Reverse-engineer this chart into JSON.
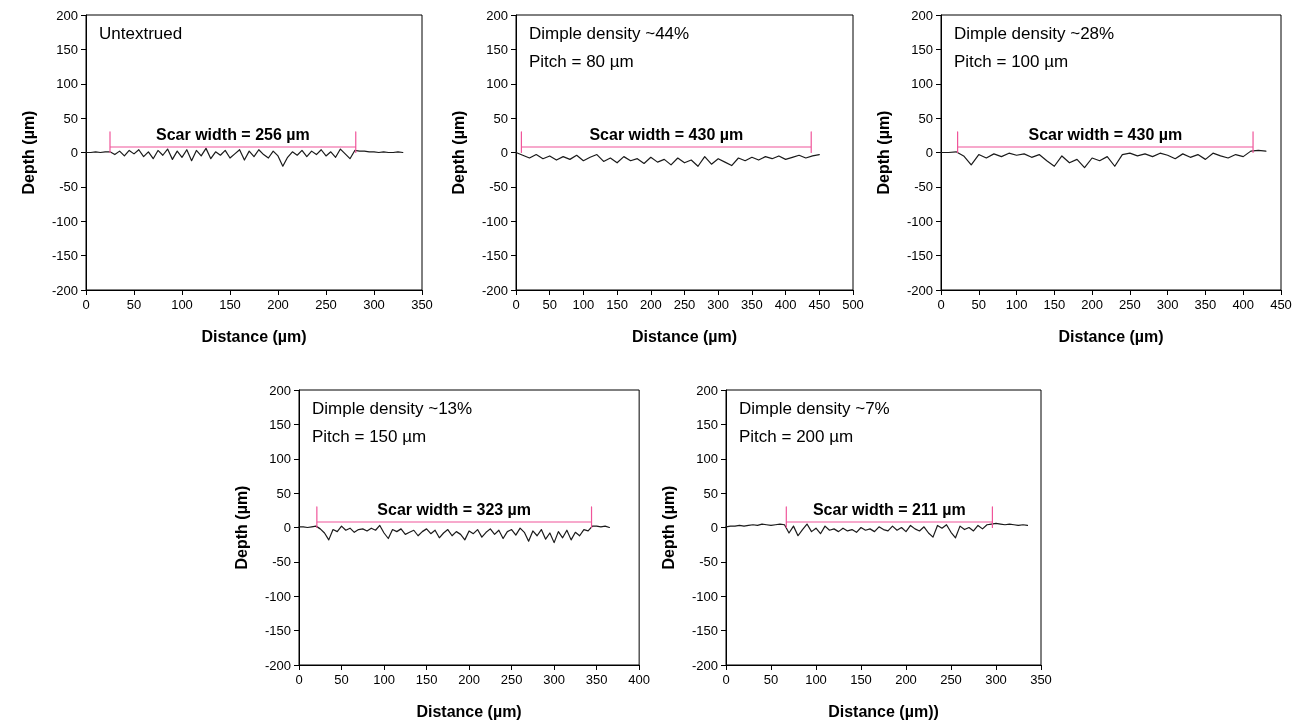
{
  "chart_data": [
    {
      "type": "line",
      "xlabel": "Distance (µm)",
      "ylabel": "Depth (µm)",
      "xlim": [
        0,
        350
      ],
      "xticks": [
        0,
        50,
        100,
        150,
        200,
        250,
        300,
        350
      ],
      "ylim": [
        -200,
        200
      ],
      "yticks": [
        -200,
        -150,
        -100,
        -50,
        0,
        50,
        100,
        150,
        200
      ],
      "grid": false,
      "marker": "none",
      "annotations": [
        "Untextrued",
        "Scar width = 256 µm"
      ],
      "series": [
        {
          "color": "#1a1a1a",
          "x": [
            0,
            5,
            10,
            15,
            20,
            25,
            30,
            35,
            40,
            45,
            50,
            55,
            60,
            65,
            70,
            75,
            80,
            85,
            90,
            95,
            100,
            105,
            110,
            115,
            120,
            125,
            130,
            135,
            140,
            145,
            150,
            155,
            160,
            165,
            170,
            175,
            180,
            185,
            190,
            195,
            200,
            205,
            210,
            215,
            220,
            225,
            230,
            235,
            240,
            245,
            250,
            255,
            260,
            265,
            270,
            275,
            280,
            285,
            290,
            295,
            300,
            305,
            310,
            315,
            320,
            325,
            330
          ],
          "values": [
            0,
            0,
            1,
            0,
            1,
            1,
            -3,
            2,
            -5,
            3,
            -2,
            4,
            -6,
            1,
            -9,
            3,
            -4,
            5,
            -10,
            2,
            -7,
            4,
            -12,
            3,
            -5,
            6,
            -9,
            1,
            -4,
            3,
            -8,
            -2,
            4,
            -11,
            2,
            -6,
            4,
            -3,
            -8,
            2,
            -5,
            -20,
            -7,
            1,
            -4,
            3,
            -6,
            2,
            -3,
            4,
            -5,
            1,
            -7,
            5,
            -2,
            -9,
            3,
            2,
            2,
            1,
            1,
            0,
            1,
            0,
            0,
            1,
            0
          ]
        },
        {
          "color": "#f0559a",
          "x": [
            25,
            25,
            25,
            281,
            281,
            281
          ],
          "values": [
            30,
            0,
            8,
            8,
            0,
            30
          ]
        }
      ]
    },
    {
      "type": "line",
      "xlabel": "Distance (µm)",
      "ylabel": "Depth (µm)",
      "xlim": [
        0,
        500
      ],
      "xticks": [
        0,
        50,
        100,
        150,
        200,
        250,
        300,
        350,
        400,
        450,
        500
      ],
      "ylim": [
        -200,
        200
      ],
      "yticks": [
        -200,
        -150,
        -100,
        -50,
        0,
        50,
        100,
        150,
        200
      ],
      "grid": false,
      "marker": "none",
      "annotations": [
        "Dimple density ~44%",
        "Pitch = 80 µm",
        "Scar width = 430 µm"
      ],
      "series": [
        {
          "color": "#1a1a1a",
          "x": [
            0,
            10,
            20,
            30,
            40,
            50,
            60,
            70,
            80,
            90,
            100,
            110,
            120,
            130,
            140,
            150,
            160,
            170,
            180,
            190,
            200,
            210,
            220,
            230,
            240,
            250,
            260,
            270,
            280,
            290,
            300,
            310,
            320,
            330,
            340,
            350,
            360,
            370,
            380,
            390,
            400,
            410,
            420,
            430,
            440,
            450
          ],
          "values": [
            0,
            -4,
            -8,
            -3,
            -9,
            -5,
            -11,
            -6,
            -10,
            -4,
            -12,
            -7,
            -3,
            -13,
            -8,
            -15,
            -6,
            -12,
            -9,
            -16,
            -7,
            -14,
            -10,
            -18,
            -8,
            -15,
            -11,
            -20,
            -6,
            -17,
            -9,
            -14,
            -19,
            -8,
            -12,
            -7,
            -11,
            -6,
            -9,
            -5,
            -10,
            -7,
            -4,
            -8,
            -5,
            -3
          ]
        },
        {
          "color": "#f0559a",
          "x": [
            8,
            8,
            8,
            438,
            438,
            438
          ],
          "values": [
            30,
            0,
            8,
            8,
            0,
            30
          ]
        }
      ]
    },
    {
      "type": "line",
      "xlabel": "Distance (µm)",
      "ylabel": "Depth (µm)",
      "xlim": [
        0,
        450
      ],
      "xticks": [
        0,
        50,
        100,
        150,
        200,
        250,
        300,
        350,
        400,
        450
      ],
      "ylim": [
        -200,
        200
      ],
      "yticks": [
        -200,
        -150,
        -100,
        -50,
        0,
        50,
        100,
        150,
        200
      ],
      "grid": false,
      "marker": "none",
      "annotations": [
        "Dimple density ~28%",
        "Pitch = 100 µm",
        "Scar width = 430 µm"
      ],
      "series": [
        {
          "color": "#1a1a1a",
          "x": [
            0,
            10,
            20,
            30,
            40,
            50,
            60,
            70,
            80,
            90,
            100,
            110,
            120,
            130,
            140,
            150,
            160,
            170,
            180,
            190,
            200,
            210,
            220,
            230,
            240,
            250,
            260,
            270,
            280,
            290,
            300,
            310,
            320,
            330,
            340,
            350,
            360,
            370,
            380,
            390,
            400,
            410,
            420,
            430
          ],
          "values": [
            0,
            0,
            1,
            -5,
            -18,
            -3,
            -8,
            -2,
            -6,
            -1,
            -4,
            -2,
            -7,
            -3,
            -12,
            -20,
            -5,
            -15,
            -10,
            -22,
            -8,
            -12,
            -6,
            -20,
            -3,
            -1,
            -5,
            -2,
            -6,
            -1,
            -4,
            -9,
            -2,
            -7,
            -3,
            -10,
            -1,
            -5,
            -8,
            -3,
            -6,
            2,
            3,
            2
          ]
        },
        {
          "color": "#f0559a",
          "x": [
            22,
            22,
            22,
            413,
            413,
            413
          ],
          "values": [
            30,
            0,
            8,
            8,
            0,
            30
          ]
        }
      ]
    },
    {
      "type": "line",
      "xlabel": "Distance (µm)",
      "ylabel": "Depth (µm)",
      "xlim": [
        0,
        400
      ],
      "xticks": [
        0,
        50,
        100,
        150,
        200,
        250,
        300,
        350,
        400
      ],
      "ylim": [
        -200,
        200
      ],
      "yticks": [
        -200,
        -150,
        -100,
        -50,
        0,
        50,
        100,
        150,
        200
      ],
      "grid": false,
      "marker": "none",
      "annotations": [
        "Dimple density ~13%",
        "Pitch = 150 µm",
        "Scar width = 323 µm"
      ],
      "series": [
        {
          "color": "#1a1a1a",
          "x": [
            0,
            5,
            10,
            15,
            20,
            25,
            30,
            35,
            40,
            45,
            50,
            55,
            60,
            65,
            70,
            75,
            80,
            85,
            90,
            95,
            100,
            105,
            110,
            115,
            120,
            125,
            130,
            135,
            140,
            145,
            150,
            155,
            160,
            165,
            170,
            175,
            180,
            185,
            190,
            195,
            200,
            205,
            210,
            215,
            220,
            225,
            230,
            235,
            240,
            245,
            250,
            255,
            260,
            265,
            270,
            275,
            280,
            285,
            290,
            295,
            300,
            305,
            310,
            315,
            320,
            325,
            330,
            335,
            340,
            345,
            350,
            355,
            360,
            365
          ],
          "values": [
            1,
            1,
            0,
            1,
            2,
            -2,
            -8,
            -18,
            -3,
            -6,
            2,
            -4,
            -1,
            -7,
            -3,
            -2,
            -5,
            -1,
            -4,
            3,
            -8,
            -16,
            -3,
            -6,
            -2,
            -10,
            -7,
            -4,
            -12,
            -6,
            -2,
            -9,
            -4,
            -15,
            -8,
            -3,
            -12,
            -6,
            -10,
            -18,
            -5,
            -9,
            -3,
            -14,
            -7,
            -2,
            -10,
            -4,
            -16,
            -6,
            -3,
            -11,
            -1,
            -7,
            -20,
            -5,
            -12,
            -3,
            -17,
            -8,
            -22,
            -6,
            -15,
            -4,
            -18,
            -7,
            -12,
            -3,
            -5,
            2,
            2,
            1,
            2,
            0
          ]
        },
        {
          "color": "#f0559a",
          "x": [
            21,
            21,
            21,
            344,
            344,
            344
          ],
          "values": [
            30,
            0,
            8,
            8,
            0,
            30
          ]
        }
      ]
    },
    {
      "type": "line",
      "xlabel": "Distance (µm))",
      "ylabel": "Depth (µm)",
      "xlim": [
        0,
        350
      ],
      "xticks": [
        0,
        50,
        100,
        150,
        200,
        250,
        300,
        350
      ],
      "ylim": [
        -200,
        200
      ],
      "yticks": [
        -200,
        -150,
        -100,
        -50,
        0,
        50,
        100,
        150,
        200
      ],
      "grid": false,
      "marker": "none",
      "annotations": [
        "Dimple density ~7%",
        "Pitch = 200 µm",
        "Scar width = 211 µm"
      ],
      "series": [
        {
          "color": "#1a1a1a",
          "x": [
            0,
            5,
            10,
            15,
            20,
            25,
            30,
            35,
            40,
            45,
            50,
            55,
            60,
            65,
            70,
            75,
            80,
            85,
            90,
            95,
            100,
            105,
            110,
            115,
            120,
            125,
            130,
            135,
            140,
            145,
            150,
            155,
            160,
            165,
            170,
            175,
            180,
            185,
            190,
            195,
            200,
            205,
            210,
            215,
            220,
            225,
            230,
            235,
            240,
            245,
            250,
            255,
            260,
            265,
            270,
            275,
            280,
            285,
            290,
            295,
            300,
            305,
            310,
            315,
            320,
            325,
            330,
            335
          ],
          "values": [
            1,
            2,
            2,
            3,
            2,
            3,
            4,
            3,
            5,
            4,
            3,
            4,
            5,
            4,
            -8,
            2,
            -12,
            -3,
            5,
            -6,
            -1,
            -9,
            2,
            -4,
            -2,
            -6,
            -1,
            -5,
            -3,
            -7,
            0,
            -4,
            -2,
            -6,
            1,
            -3,
            -5,
            2,
            -4,
            0,
            -6,
            3,
            -2,
            -5,
            1,
            -8,
            -14,
            3,
            -1,
            4,
            -7,
            -15,
            2,
            -3,
            0,
            -5,
            3,
            -2,
            4,
            5,
            6,
            5,
            4,
            5,
            4,
            3,
            4,
            3
          ]
        },
        {
          "color": "#f0559a",
          "x": [
            67,
            67,
            67,
            296,
            296,
            296
          ],
          "values": [
            30,
            0,
            8,
            8,
            0,
            30
          ]
        }
      ]
    }
  ]
}
